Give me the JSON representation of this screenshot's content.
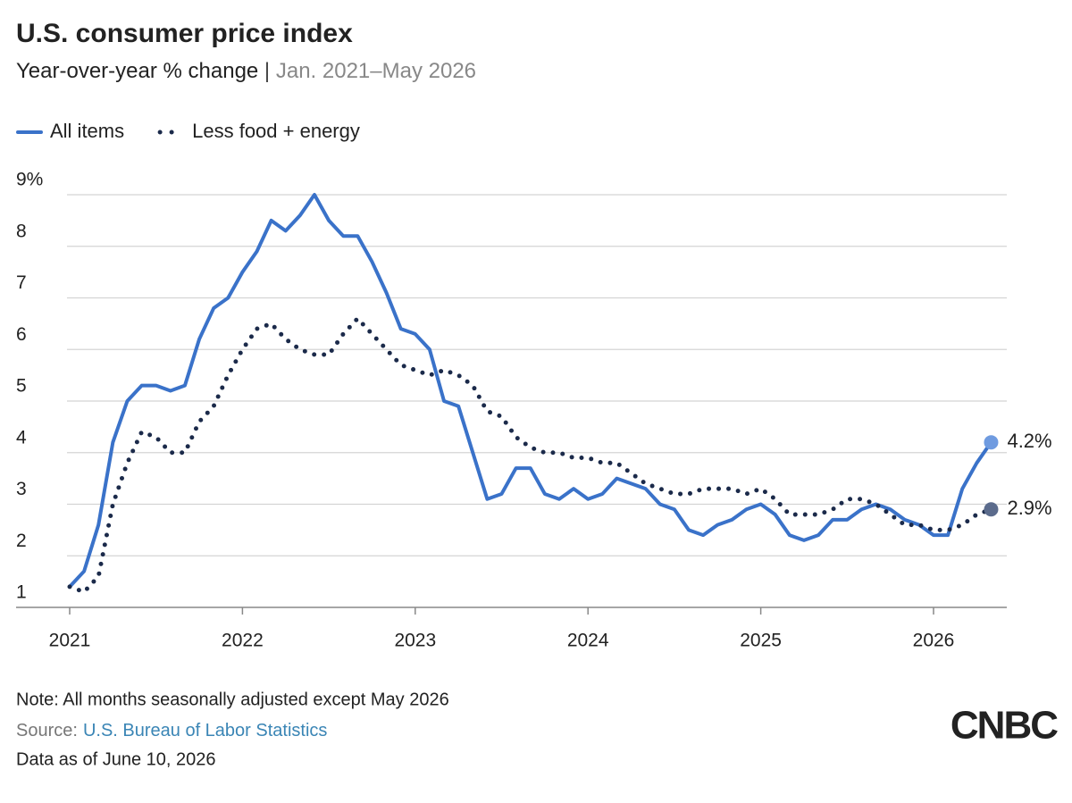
{
  "chart_data": {
    "type": "line",
    "title": "U.S. consumer price index",
    "subtitle": "Year-over-year % change",
    "subtitle_range": "Jan. 2021–May 2026",
    "categories": [
      "2021",
      null,
      null,
      null,
      null,
      null,
      null,
      null,
      null,
      null,
      null,
      null,
      "2022",
      null,
      null,
      null,
      null,
      null,
      null,
      null,
      null,
      null,
      null,
      null,
      "2023",
      null,
      null,
      null,
      null,
      null,
      null,
      null,
      null,
      null,
      null,
      null,
      "2024",
      null,
      null,
      null,
      null,
      null,
      null,
      null,
      null,
      null,
      null,
      null,
      "2025",
      null,
      null,
      null,
      null,
      null,
      null,
      null,
      null,
      null,
      null,
      null,
      "2026",
      null,
      null,
      null,
      null
    ],
    "series": [
      {
        "name": "All items",
        "color": "#3a72c9",
        "style": "solid",
        "end_color": "#6f9be0",
        "values": [
          1.4,
          1.7,
          2.6,
          4.2,
          5.0,
          5.3,
          5.3,
          5.2,
          5.3,
          6.2,
          6.8,
          7.0,
          7.5,
          7.9,
          8.5,
          8.3,
          8.6,
          9.0,
          8.5,
          8.2,
          8.2,
          7.7,
          7.1,
          6.4,
          6.3,
          6.0,
          5.0,
          4.9,
          4.0,
          3.1,
          3.2,
          3.7,
          3.7,
          3.2,
          3.1,
          3.3,
          3.1,
          3.2,
          3.5,
          3.4,
          3.3,
          3.0,
          2.9,
          2.5,
          2.4,
          2.6,
          2.7,
          2.9,
          3.0,
          2.8,
          2.4,
          2.3,
          2.4,
          2.7,
          2.7,
          2.9,
          3.0,
          2.9,
          2.7,
          2.6,
          2.4,
          2.4,
          3.3,
          3.8,
          4.2
        ],
        "value_labels": [
          null,
          null,
          null,
          null,
          null,
          null,
          null,
          null,
          null,
          null,
          null,
          null,
          null,
          null,
          null,
          null,
          null,
          null,
          null,
          null,
          null,
          null,
          null,
          null,
          null,
          null,
          null,
          null,
          null,
          null,
          null,
          null,
          null,
          null,
          null,
          null,
          null,
          null,
          null,
          null,
          null,
          null,
          null,
          null,
          null,
          null,
          null,
          null,
          null,
          null,
          null,
          null,
          null,
          null,
          null,
          null,
          null,
          null,
          null,
          null,
          null,
          null,
          null,
          null,
          "4.2%"
        ]
      },
      {
        "name": "Less food + energy",
        "color": "#1b2a4a",
        "style": "dotted",
        "end_color": "#5b6b8c",
        "values": [
          1.4,
          1.3,
          1.6,
          3.0,
          3.8,
          4.4,
          4.3,
          4.0,
          4.0,
          4.6,
          4.9,
          5.5,
          6.0,
          6.4,
          6.5,
          6.2,
          6.0,
          5.9,
          5.9,
          6.3,
          6.6,
          6.3,
          6.0,
          5.7,
          5.6,
          5.5,
          5.6,
          5.5,
          5.3,
          4.8,
          4.7,
          4.3,
          4.1,
          4.0,
          4.0,
          3.9,
          3.9,
          3.8,
          3.8,
          3.6,
          3.4,
          3.3,
          3.2,
          3.2,
          3.3,
          3.3,
          3.3,
          3.2,
          3.3,
          3.1,
          2.8,
          2.8,
          2.8,
          2.9,
          3.1,
          3.1,
          3.0,
          2.8,
          2.6,
          2.6,
          2.5,
          2.5,
          2.6,
          2.8,
          2.9
        ],
        "value_labels": [
          null,
          null,
          null,
          null,
          null,
          null,
          null,
          null,
          null,
          null,
          null,
          null,
          null,
          null,
          null,
          null,
          null,
          null,
          null,
          null,
          null,
          null,
          null,
          null,
          null,
          null,
          null,
          null,
          null,
          null,
          null,
          null,
          null,
          null,
          null,
          null,
          null,
          null,
          null,
          null,
          null,
          null,
          null,
          null,
          null,
          null,
          null,
          null,
          null,
          null,
          null,
          null,
          null,
          null,
          null,
          null,
          null,
          null,
          null,
          null,
          null,
          null,
          null,
          null,
          "2.9%"
        ]
      }
    ],
    "ylim": [
      1,
      9
    ],
    "yticks": [
      1,
      2,
      3,
      4,
      5,
      6,
      7,
      8,
      {
        "value": 9,
        "label": "9%"
      }
    ],
    "grid": true,
    "legend": "top-left",
    "note": "Note: All months seasonally adjusted except May 2026",
    "source_label": "Source:",
    "source": "U.S. Bureau of Labor Statistics",
    "data_as_of": "Data as of June 10, 2026",
    "logo": "CNBC"
  }
}
